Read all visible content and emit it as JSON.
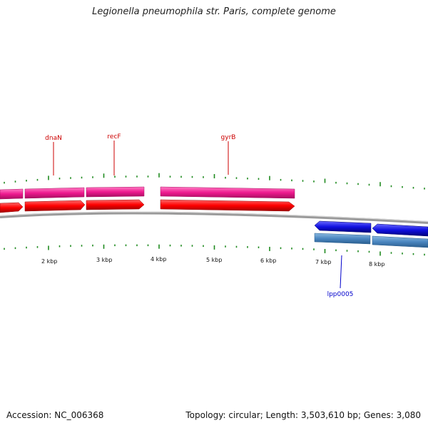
{
  "title": "Legionella pneumophila str. Paris, complete genome",
  "footer": {
    "accession": "Accession: NC_006368",
    "summary": "Topology: circular; Length: 3,503,610 bp; Genes: 3,080"
  },
  "axis": {
    "unit": "kbp",
    "labels": [
      "2 kbp",
      "3 kbp",
      "4 kbp",
      "5 kbp",
      "6 kbp",
      "7 kbp",
      "8 kbp"
    ]
  },
  "colors": {
    "forward_gene": "#ee1a8f",
    "forward_cds": "#ff0000",
    "reverse_gene": "#4a86c0",
    "reverse_cds": "#1010e0",
    "backbone": "#8a8a8a",
    "tick": "#1f8a1f",
    "forward_label": "#cc0000",
    "reverse_label": "#0000cc"
  },
  "gene_labels": {
    "forward": [
      "dnaN",
      "recF",
      "gyrB"
    ],
    "reverse": [
      "lpp0005"
    ]
  }
}
